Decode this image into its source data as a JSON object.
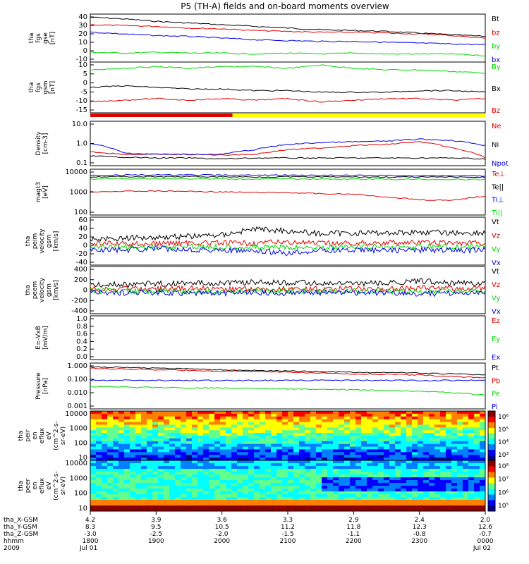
{
  "title": "P5 (TH-A) fields and on-board moments overview",
  "colors": {
    "black": "#000000",
    "red": "#e00000",
    "green": "#00d800",
    "blue": "#0000e0",
    "yellow": "#ffff00"
  },
  "chart_data": [
    {
      "type": "line",
      "ylabel": [
        "tha",
        "fgs",
        "gse",
        "[nT]"
      ],
      "yticks": [
        "40",
        "30",
        "20",
        "10",
        "0",
        "-10"
      ],
      "ylim": [
        -12,
        42
      ],
      "series": [
        {
          "name": "Bt",
          "color": "black",
          "values": [
            40,
            38,
            35,
            33,
            31,
            29,
            27,
            25,
            24,
            23,
            21,
            19,
            17
          ]
        },
        {
          "name": "bz",
          "color": "red",
          "values": [
            31,
            30,
            29,
            27,
            26,
            24,
            23,
            22,
            22,
            21,
            20,
            18,
            15
          ]
        },
        {
          "name": "by",
          "color": "green",
          "values": [
            -2,
            -3,
            -2,
            -3,
            -3,
            -4,
            -3,
            -4,
            -3,
            -4,
            -4,
            -4,
            -6
          ]
        },
        {
          "name": "bx",
          "color": "blue",
          "values": [
            22,
            20,
            18,
            17,
            15,
            13,
            12,
            11,
            11,
            10,
            9,
            8,
            7
          ]
        }
      ]
    },
    {
      "type": "line",
      "ylabel": [
        "tha",
        "fgs",
        "gsm",
        "[nT]"
      ],
      "yticks": [
        "10",
        "5",
        "0",
        "-5",
        "-10",
        "-15"
      ],
      "ylim": [
        -18,
        12
      ],
      "series": [
        {
          "name": "By",
          "color": "green",
          "values": [
            8,
            9,
            10,
            9,
            10,
            10,
            9,
            11,
            9,
            8,
            8,
            7,
            6
          ]
        },
        {
          "name": "Bx",
          "color": "black",
          "values": [
            -3,
            -2,
            -3,
            -4,
            -4,
            -5,
            -5,
            -6,
            -6,
            -6,
            -5,
            -5,
            -6
          ]
        },
        {
          "name": "Bz",
          "color": "red",
          "values": [
            -12,
            -11,
            -10,
            -11,
            -10,
            -11,
            -10,
            -12,
            -11,
            -10,
            -10,
            -11,
            -10
          ]
        }
      ]
    },
    {
      "type": "log",
      "ylabel": [
        "Density",
        "[cm-3]"
      ],
      "yticks": [
        "10.0",
        "1.0",
        "0.1"
      ],
      "ylim": [
        0.1,
        10
      ],
      "series": [
        {
          "name": "Ne",
          "color": "red",
          "values": [
            0.4,
            0.3,
            0.3,
            0.3,
            0.28,
            0.3,
            0.5,
            0.6,
            0.8,
            0.9,
            1.2,
            0.6,
            0.2
          ]
        },
        {
          "name": "Ni",
          "color": "black",
          "values": [
            0.25,
            0.22,
            0.2,
            0.2,
            0.18,
            0.2,
            0.2,
            0.2,
            0.2,
            0.2,
            0.2,
            0.2,
            0.18
          ]
        },
        {
          "name": "Npot",
          "color": "blue",
          "values": [
            1.0,
            0.35,
            0.3,
            0.3,
            0.3,
            0.5,
            0.9,
            1.1,
            1.2,
            1.3,
            1.6,
            1.4,
            0.8
          ]
        }
      ]
    },
    {
      "type": "log",
      "ylabel": [
        "magt3",
        "[eV]"
      ],
      "yticks": [
        "10000",
        "1000",
        "100"
      ],
      "ylim": [
        20,
        10000
      ],
      "series": [
        {
          "name": "Te⊥",
          "color": "red",
          "values": [
            480,
            500,
            520,
            500,
            460,
            420,
            420,
            350,
            330,
            220,
            150,
            130,
            250
          ]
        },
        {
          "name": "Te||",
          "color": "black",
          "values": [
            4000,
            4200,
            4100,
            4200,
            4100,
            4000,
            4100,
            4000,
            4000,
            3900,
            3900,
            3900,
            3800
          ]
        },
        {
          "name": "Ti⊥",
          "color": "blue",
          "values": [
            5200,
            5400,
            5300,
            5300,
            5200,
            5100,
            5200,
            5000,
            5000,
            4900,
            4800,
            4800,
            4600
          ]
        },
        {
          "name": "Ti||",
          "color": "green",
          "values": [
            3000,
            3200,
            3100,
            3100,
            3000,
            3000,
            3000,
            3000,
            2900,
            2900,
            2800,
            2800,
            2700
          ]
        }
      ]
    },
    {
      "type": "line",
      "ylabel": [
        "tha",
        "peim",
        "velocity",
        "gsm",
        "[km/s]"
      ],
      "yticks": [
        "60",
        "40",
        "20",
        "0",
        "-20",
        "-40"
      ],
      "ylim": [
        -45,
        65
      ],
      "series": [
        {
          "name": "Vt",
          "color": "black",
          "values": [
            15,
            17,
            20,
            22,
            25,
            40,
            35,
            28,
            30,
            30,
            32,
            30,
            30
          ]
        },
        {
          "name": "Vz",
          "color": "red",
          "values": [
            5,
            3,
            4,
            6,
            5,
            5,
            8,
            4,
            5,
            6,
            6,
            5,
            5
          ]
        },
        {
          "name": "Vy",
          "color": "green",
          "values": [
            -3,
            -4,
            -5,
            -3,
            -4,
            -5,
            -6,
            -5,
            -4,
            -5,
            -4,
            -5,
            -4
          ]
        },
        {
          "name": "Vx",
          "color": "blue",
          "values": [
            -10,
            -12,
            -8,
            -10,
            -12,
            -15,
            -20,
            -12,
            -12,
            -12,
            -12,
            -12,
            -12
          ]
        }
      ]
    },
    {
      "type": "line",
      "ylabel": [
        "tha",
        "peem",
        "velocity",
        "gsm",
        "[km/s]"
      ],
      "yticks": [
        "400",
        "200",
        "0",
        "-200",
        "-400"
      ],
      "ylim": [
        -420,
        420
      ],
      "series": [
        {
          "name": "Vt",
          "color": "black",
          "values": [
            100,
            110,
            120,
            130,
            140,
            150,
            140,
            130,
            120,
            130,
            170,
            140,
            130
          ]
        },
        {
          "name": "Vz",
          "color": "red",
          "values": [
            20,
            25,
            20,
            30,
            25,
            20,
            25,
            25,
            20,
            25,
            40,
            35,
            30
          ]
        },
        {
          "name": "Vy",
          "color": "green",
          "values": [
            -20,
            -25,
            -20,
            -30,
            -25,
            -20,
            -25,
            -25,
            -20,
            -25,
            -30,
            -25,
            -25
          ]
        },
        {
          "name": "Vx",
          "color": "blue",
          "values": [
            -40,
            -50,
            -45,
            -60,
            -55,
            -50,
            -55,
            -50,
            -50,
            -55,
            -70,
            -60,
            -55
          ]
        }
      ]
    },
    {
      "type": "line",
      "ylabel": [
        "E=-VxB",
        "[mV/m]"
      ],
      "yticks": [
        "1.0",
        "0.8",
        "0.6",
        "0.4",
        "0.2",
        "0.0"
      ],
      "ylim": [
        0,
        1
      ],
      "series": [
        {
          "name": "Ez",
          "color": "red",
          "values": []
        },
        {
          "name": "Ey",
          "color": "green",
          "values": []
        },
        {
          "name": "Ex",
          "color": "blue",
          "values": []
        }
      ]
    },
    {
      "type": "log",
      "ylabel": [
        "Pressure",
        "[nPa]"
      ],
      "yticks": [
        "1.000",
        "0.100",
        "0.010",
        "0.001"
      ],
      "ylim": [
        0.001,
        1.5
      ],
      "series": [
        {
          "name": "Pt",
          "color": "black",
          "values": [
            1.0,
            0.9,
            0.8,
            0.7,
            0.6,
            0.55,
            0.5,
            0.45,
            0.4,
            0.38,
            0.35,
            0.3,
            0.25
          ]
        },
        {
          "name": "Pb",
          "color": "red",
          "values": [
            0.8,
            0.7,
            0.6,
            0.55,
            0.5,
            0.45,
            0.4,
            0.35,
            0.3,
            0.28,
            0.25,
            0.2,
            0.15
          ]
        },
        {
          "name": "Pe",
          "color": "green",
          "values": [
            0.035,
            0.032,
            0.03,
            0.028,
            0.027,
            0.026,
            0.024,
            0.022,
            0.02,
            0.018,
            0.016,
            0.012,
            0.008
          ]
        },
        {
          "name": "Pi",
          "color": "blue",
          "values": [
            0.1,
            0.1,
            0.1,
            0.1,
            0.1,
            0.1,
            0.1,
            0.1,
            0.1,
            0.1,
            0.1,
            0.1,
            0.1
          ]
        }
      ]
    },
    {
      "type": "heatmap",
      "ylabel": [
        "tha",
        "peir",
        "en",
        "eflux",
        "eV",
        "(cm^2-s-",
        "sr-eV)"
      ],
      "yticks": [
        "10000",
        "1000",
        "100",
        "10"
      ],
      "colorbar": [
        "10⁶",
        "10⁵",
        "10⁴",
        "10³"
      ]
    },
    {
      "type": "heatmap",
      "ylabel": [
        "tha",
        "peer",
        "en",
        "eflux",
        "eV",
        "(cm^2-s-",
        "sr-eV)"
      ],
      "yticks": [
        "10000",
        "1000",
        "100",
        "10"
      ],
      "colorbar": [
        "10⁸",
        "10⁷",
        "10⁶",
        "10⁵"
      ]
    }
  ],
  "status_bar": {
    "labels_before": "red",
    "labels_after": "yellow",
    "switch_fraction": 0.36
  },
  "xaxis": {
    "row_labels": [
      "tha_X-GSM",
      "tha_Y-GSM",
      "tha_Z-GSM",
      "hhmm",
      "2009"
    ],
    "ticks": [
      [
        "4.2",
        "8.3",
        "-3.0",
        "1800",
        "Jul 01"
      ],
      [
        "3.9",
        "9.5",
        "-2.5",
        "1900",
        ""
      ],
      [
        "3.6",
        "10.5",
        "-2.0",
        "2000",
        ""
      ],
      [
        "3.3",
        "11.2",
        "-1.5",
        "2100",
        ""
      ],
      [
        "2.9",
        "11.8",
        "-1.1",
        "2200",
        ""
      ],
      [
        "2.4",
        "12.3",
        "-0.8",
        "2300",
        ""
      ],
      [
        "2.0",
        "12.6",
        "-0.7",
        "0000",
        "Jul 02"
      ]
    ]
  }
}
